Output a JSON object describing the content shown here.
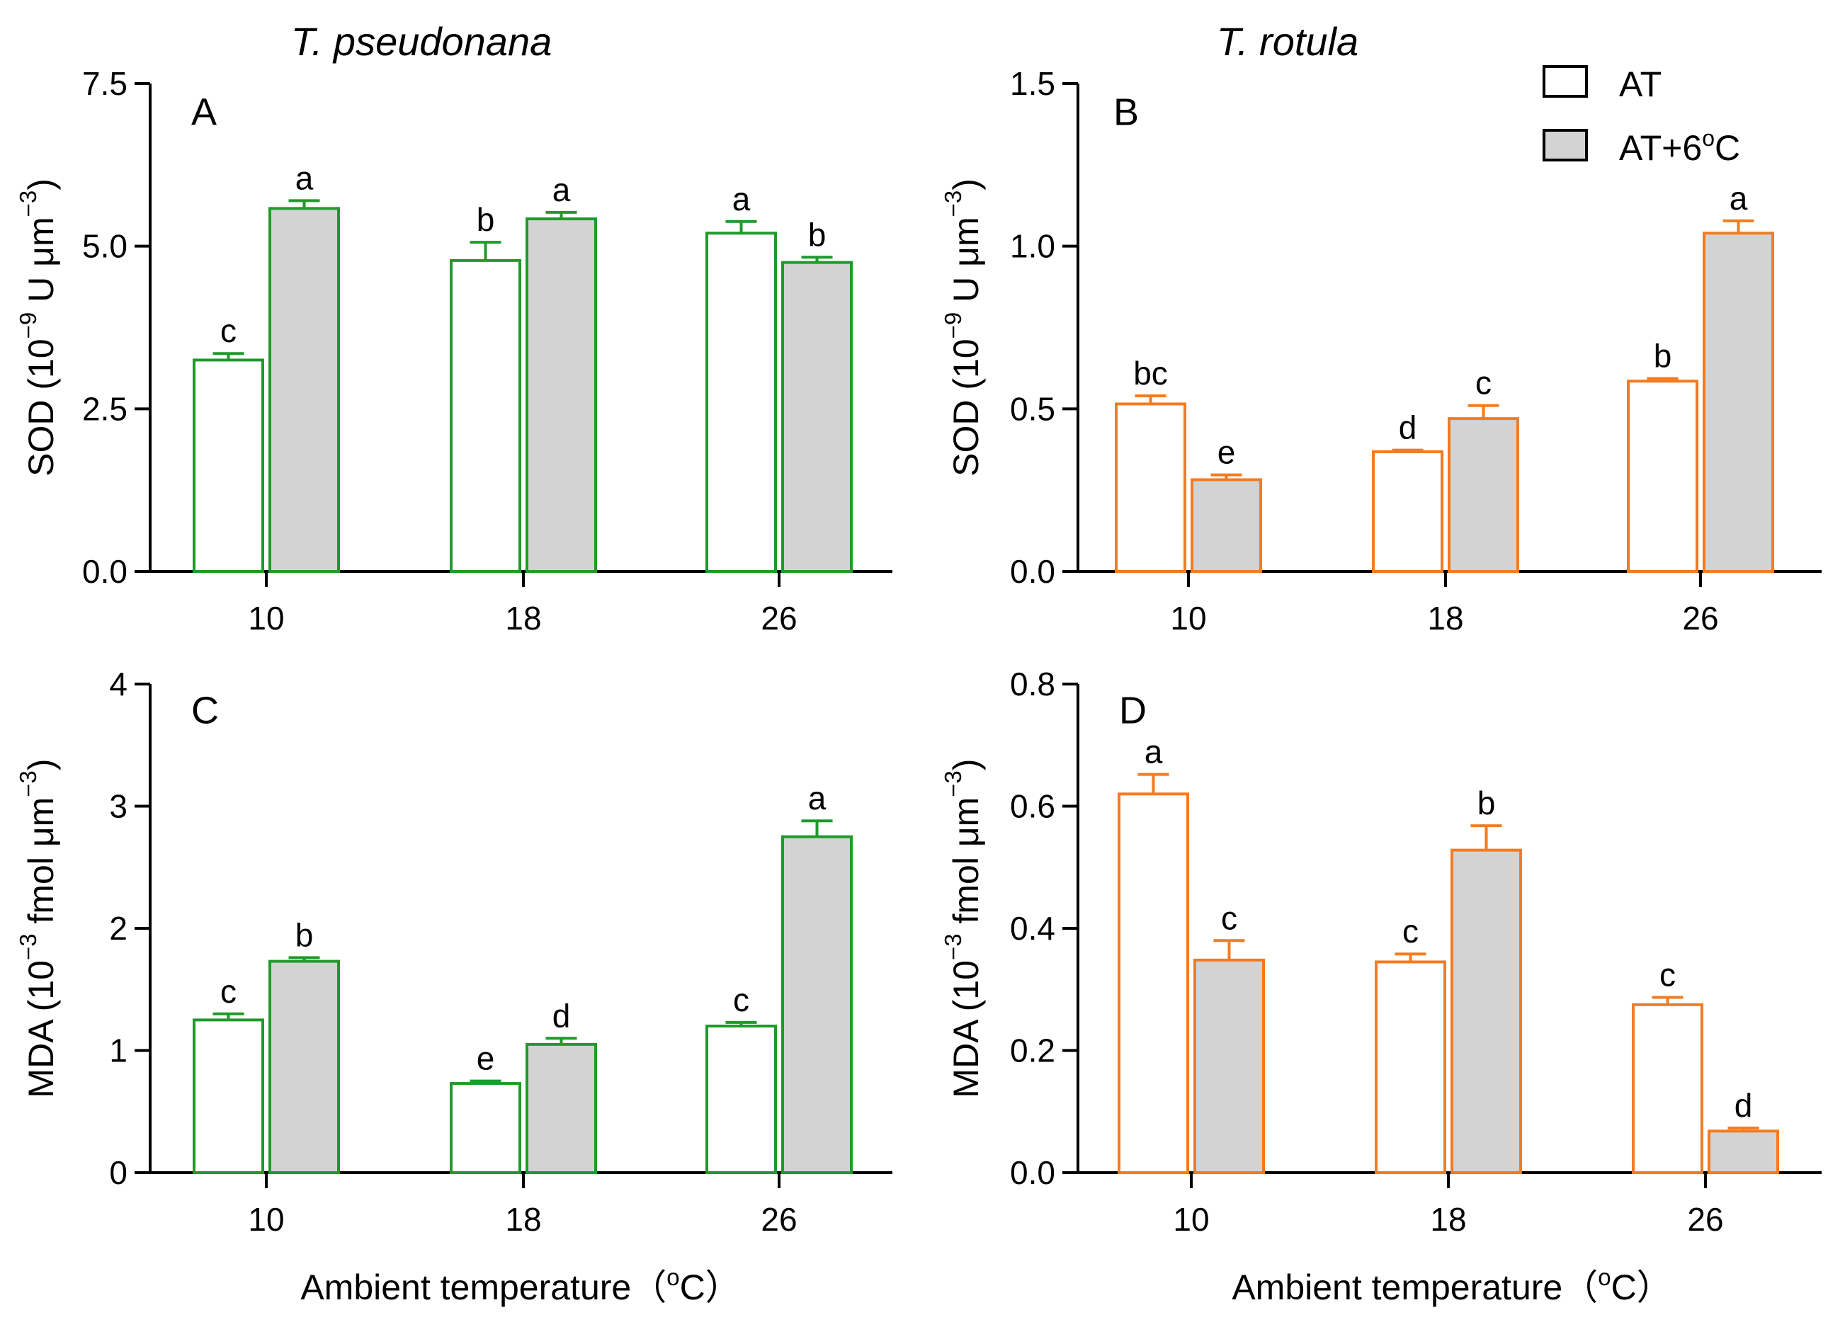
{
  "figure": {
    "column_titles": [
      "T. pseudonana",
      "T. rotula"
    ],
    "xlabel": {
      "main": "Ambient temperature（",
      "sup": "o",
      "tail": "C）"
    },
    "legend": [
      {
        "label": "AT",
        "fill": "#ffffff"
      },
      {
        "label": "AT+6",
        "sup": "o",
        "tail": "C",
        "fill": "#d3d3d3"
      }
    ],
    "colors": {
      "green": "#1f9a2b",
      "orange": "#f47b20",
      "gray_fill": "#d3d3d3",
      "white_fill": "#ffffff"
    }
  },
  "chart_data": [
    {
      "panel": "A",
      "type": "bar",
      "title": "T. pseudonana",
      "categories": [
        "10",
        "18",
        "26"
      ],
      "xlabel": "Ambient temperature (oC)",
      "ylabel": {
        "pre": "SOD (10",
        "sup1": "−9",
        "mid": " U μm",
        "sup2": "−3",
        "post": ")"
      },
      "ylim": [
        0,
        7.5
      ],
      "yticks": [
        0.0,
        2.5,
        5.0,
        7.5
      ],
      "ytick_labels": [
        "0.0",
        "2.5",
        "5.0",
        "7.5"
      ],
      "color": "#1f9a2b",
      "series": [
        {
          "name": "AT",
          "fill": "#ffffff",
          "values": [
            3.25,
            4.78,
            5.2
          ],
          "errors": [
            0.1,
            0.28,
            0.18
          ],
          "letters": [
            "c",
            "b",
            "a"
          ]
        },
        {
          "name": "AT+6oC",
          "fill": "#d3d3d3",
          "values": [
            5.58,
            5.42,
            4.75
          ],
          "errors": [
            0.12,
            0.1,
            0.08
          ],
          "letters": [
            "a",
            "a",
            "b"
          ]
        }
      ]
    },
    {
      "panel": "B",
      "type": "bar",
      "title": "T. rotula",
      "categories": [
        "10",
        "18",
        "26"
      ],
      "xlabel": "Ambient temperature (oC)",
      "ylabel": {
        "pre": "SOD (10",
        "sup1": "−9",
        "mid": " U μm",
        "sup2": "−3",
        "post": ")"
      },
      "ylim": [
        0,
        1.5
      ],
      "yticks": [
        0.0,
        0.5,
        1.0,
        1.5
      ],
      "ytick_labels": [
        "0.0",
        "0.5",
        "1.0",
        "1.5"
      ],
      "color": "#f47b20",
      "series": [
        {
          "name": "AT",
          "fill": "#ffffff",
          "values": [
            0.515,
            0.368,
            0.585
          ],
          "errors": [
            0.025,
            0.005,
            0.008
          ],
          "letters": [
            "bc",
            "d",
            "b"
          ]
        },
        {
          "name": "AT+6oC",
          "fill": "#d3d3d3",
          "values": [
            0.282,
            0.47,
            1.04
          ],
          "errors": [
            0.015,
            0.04,
            0.038
          ],
          "letters": [
            "e",
            "c",
            "a"
          ]
        }
      ]
    },
    {
      "panel": "C",
      "type": "bar",
      "title": "",
      "categories": [
        "10",
        "18",
        "26"
      ],
      "xlabel": "Ambient temperature (oC)",
      "ylabel": {
        "pre": "MDA (10",
        "sup1": "−3",
        "mid": " fmol μm",
        "sup2": "−3",
        "post": ")"
      },
      "ylim": [
        0,
        4
      ],
      "yticks": [
        0,
        1,
        2,
        3,
        4
      ],
      "ytick_labels": [
        "0",
        "1",
        "2",
        "3",
        "4"
      ],
      "color": "#1f9a2b",
      "series": [
        {
          "name": "AT",
          "fill": "#ffffff",
          "values": [
            1.25,
            0.73,
            1.2
          ],
          "errors": [
            0.05,
            0.02,
            0.03
          ],
          "letters": [
            "c",
            "e",
            "c"
          ]
        },
        {
          "name": "AT+6oC",
          "fill": "#d3d3d3",
          "values": [
            1.73,
            1.05,
            2.75
          ],
          "errors": [
            0.03,
            0.05,
            0.13
          ],
          "letters": [
            "b",
            "d",
            "a"
          ]
        }
      ]
    },
    {
      "panel": "D",
      "type": "bar",
      "title": "",
      "categories": [
        "10",
        "18",
        "26"
      ],
      "xlabel": "Ambient temperature (oC)",
      "ylabel": {
        "pre": "MDA (10",
        "sup1": "−3",
        "mid": " fmol μm",
        "sup2": "−3",
        "post": ")"
      },
      "ylim": [
        0,
        0.8
      ],
      "yticks": [
        0.0,
        0.2,
        0.4,
        0.6,
        0.8
      ],
      "ytick_labels": [
        "0.0",
        "0.2",
        "0.4",
        "0.6",
        "0.8"
      ],
      "color": "#f47b20",
      "series": [
        {
          "name": "AT",
          "fill": "#ffffff",
          "values": [
            0.62,
            0.345,
            0.275
          ],
          "errors": [
            0.032,
            0.013,
            0.012
          ],
          "letters": [
            "a",
            "c",
            "c"
          ]
        },
        {
          "name": "AT+6oC",
          "fill": "#d3d3d3",
          "values": [
            0.348,
            0.528,
            0.068
          ],
          "errors": [
            0.032,
            0.04,
            0.005
          ],
          "letters": [
            "c",
            "b",
            "d"
          ]
        }
      ]
    }
  ]
}
